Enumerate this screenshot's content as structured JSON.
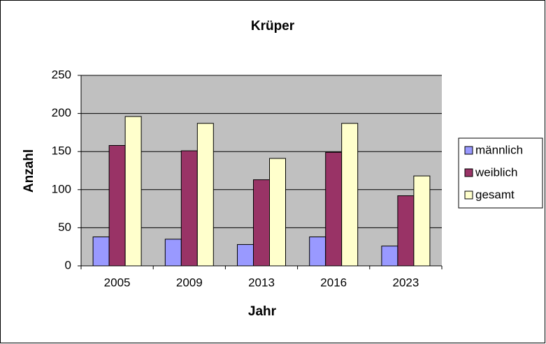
{
  "chart_data": {
    "type": "bar",
    "title": "Krüper",
    "x_label": "Jahr",
    "y_label": "Anzahl",
    "categories": [
      "2005",
      "2009",
      "2013",
      "2016",
      "2023"
    ],
    "series": [
      {
        "name": "männlich",
        "color": "#9999ff",
        "values": [
          38,
          35,
          28,
          38,
          26
        ]
      },
      {
        "name": "weiblich",
        "color": "#993366",
        "values": [
          158,
          151,
          113,
          149,
          92
        ]
      },
      {
        "name": "gesamt",
        "color": "#ffffcc",
        "values": [
          196,
          187,
          141,
          187,
          118
        ]
      }
    ],
    "ylim": [
      0,
      250
    ],
    "yticks": [
      0,
      50,
      100,
      150,
      200,
      250
    ],
    "grid": true,
    "legend": "right"
  }
}
